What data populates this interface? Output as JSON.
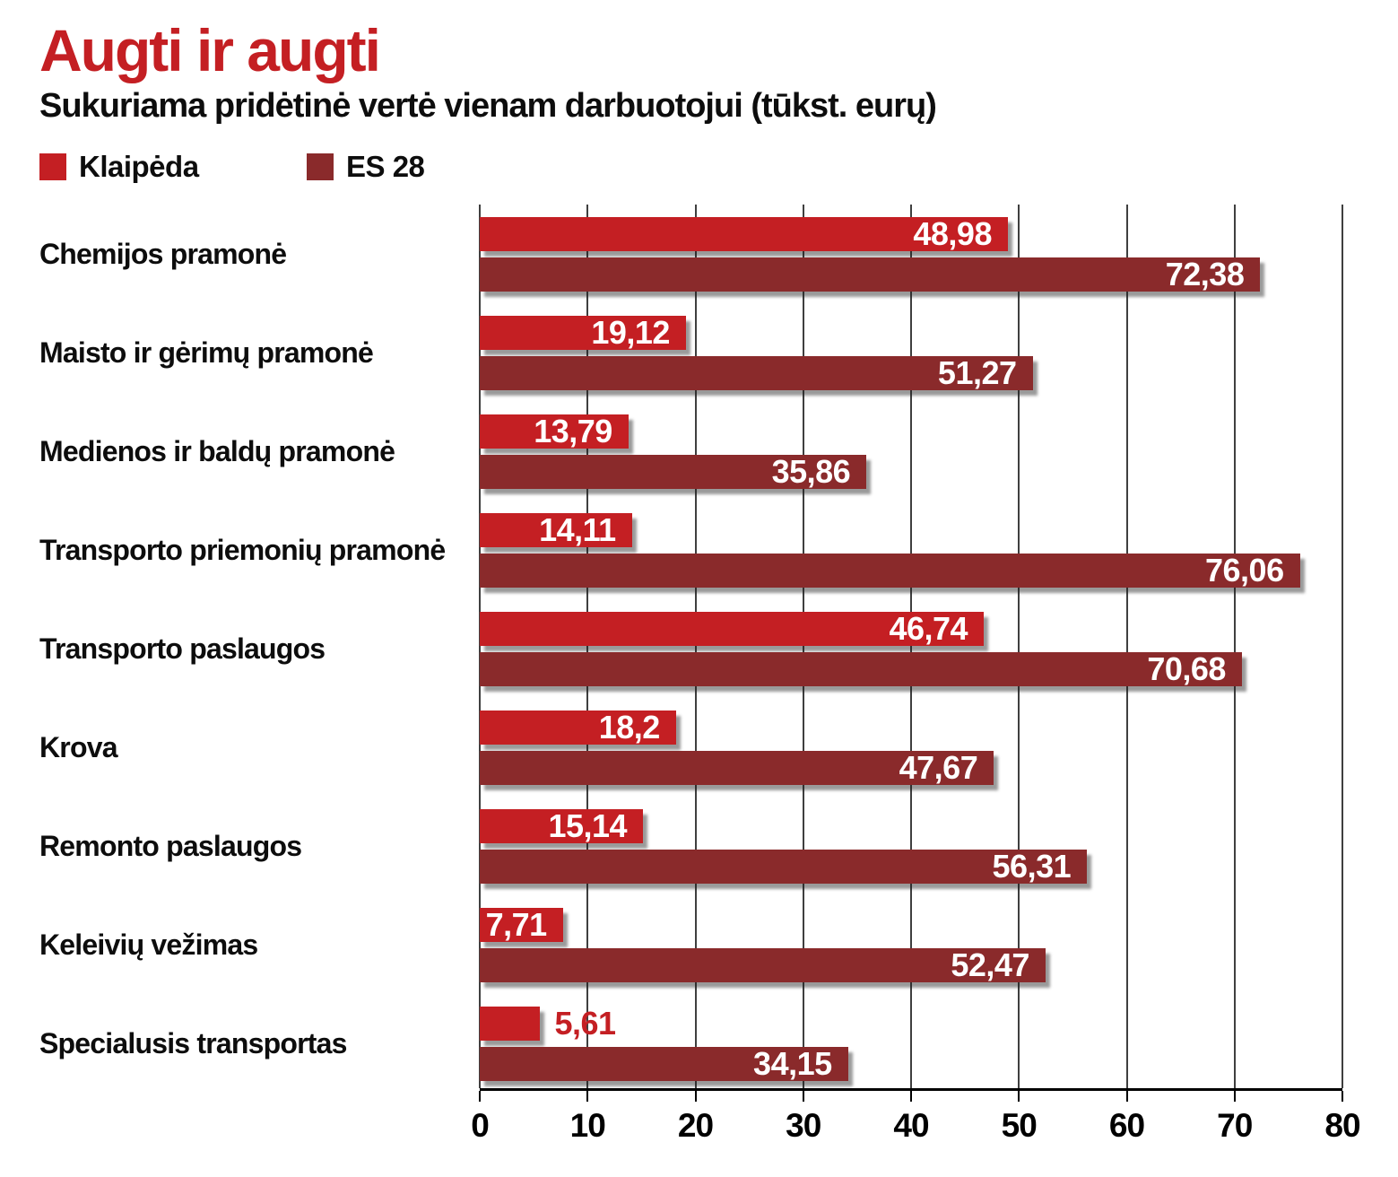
{
  "header": {
    "title": "Augti ir augti",
    "subtitle": "Sukuriama pridėtinė vertė vienam darbuotojui (tūkst. eurų)"
  },
  "colors": {
    "klaipeda": "#c41f23",
    "es28": "#8a2a2b",
    "gridline": "#3f3f3f",
    "axis": "#000000",
    "title": "#c41f23"
  },
  "chart_data": {
    "type": "bar",
    "orientation": "horizontal",
    "title": "Augti ir augti",
    "subtitle": "Sukuriama pridėtinė vertė vienam darbuotojui (tūkst. eurų)",
    "xlabel": "",
    "ylabel": "",
    "xlim": [
      0,
      80
    ],
    "xticks": [
      "0",
      "10",
      "20",
      "30",
      "40",
      "50",
      "60",
      "70",
      "80"
    ],
    "grid": true,
    "legend_position": "top",
    "categories": [
      "Chemijos pramonė",
      "Maisto ir gėrimų pramonė",
      "Medienos ir baldų pramonė",
      "Transporto priemonių pramonė",
      "Transporto paslaugos",
      "Krova",
      "Remonto paslaugos",
      "Keleivių vežimas",
      "Specialusis transportas"
    ],
    "series": [
      {
        "name": "Klaipėda",
        "color": "#c41f23",
        "values": [
          48.98,
          19.12,
          13.79,
          14.11,
          46.74,
          18.2,
          15.14,
          7.71,
          5.61
        ],
        "labels": [
          "48,98",
          "19,12",
          "13,79",
          "14,11",
          "46,74",
          "18,2",
          "15,14",
          "7,71",
          "5,61"
        ],
        "label_inside": [
          true,
          true,
          true,
          true,
          true,
          true,
          true,
          true,
          false
        ]
      },
      {
        "name": "ES 28",
        "color": "#8a2a2b",
        "values": [
          72.38,
          51.27,
          35.86,
          76.06,
          70.68,
          47.67,
          56.31,
          52.47,
          34.15
        ],
        "labels": [
          "72,38",
          "51,27",
          "35,86",
          "76,06",
          "70,68",
          "47,67",
          "56,31",
          "52,47",
          "34,15"
        ],
        "label_inside": [
          true,
          true,
          true,
          true,
          true,
          true,
          true,
          true,
          true
        ]
      }
    ]
  }
}
